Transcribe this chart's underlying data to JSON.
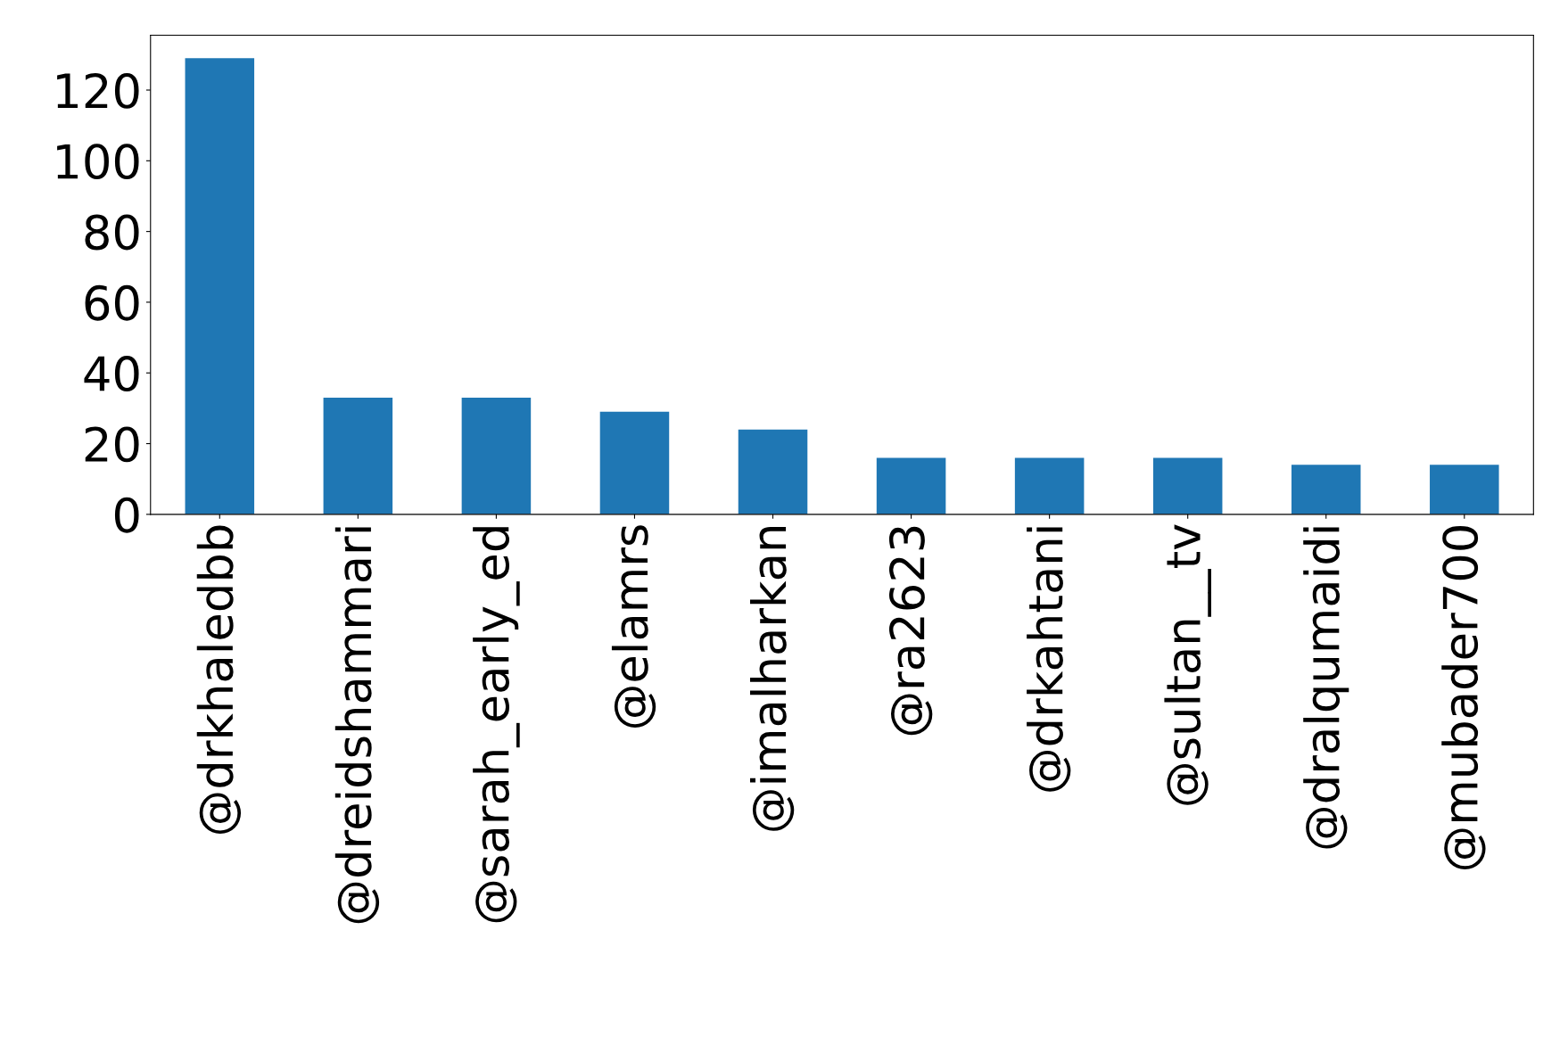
{
  "chart_data": {
    "type": "bar",
    "categories": [
      "@drkhaledbb",
      "@dreidshammari",
      "@sarah_early_ed",
      "@elamrs",
      "@imalharkan",
      "@ra2623",
      "@drkahtani",
      "@sultan__tv",
      "@dralqumaidi",
      "@mubader700"
    ],
    "values": [
      129,
      33,
      33,
      29,
      24,
      16,
      16,
      16,
      14,
      14
    ],
    "color": "#1f77b4",
    "ylim": [
      0,
      135.5
    ],
    "yticks": [
      0,
      20,
      40,
      60,
      80,
      100,
      120
    ],
    "grid": false,
    "legend": false
  }
}
